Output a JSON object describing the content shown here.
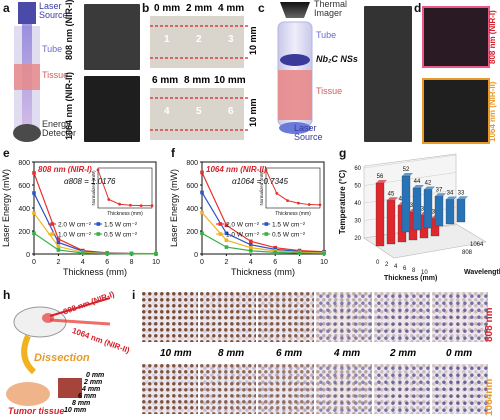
{
  "labels": {
    "a": "a",
    "b": "b",
    "c": "c",
    "d": "d",
    "e": "e",
    "f": "f",
    "g": "g",
    "h": "h",
    "i": "i"
  },
  "panel_a": {
    "laser_source": "Laser Source",
    "tube": "Tube",
    "tissue": "Tissue",
    "energy_detector": "Energy Detector"
  },
  "panel_ab_side": {
    "nir1": "808 nm (NIR-I)",
    "nir2": "1064 nm (NIR-II)"
  },
  "panel_b": {
    "top_thick": [
      "0 mm",
      "2 mm",
      "4 mm"
    ],
    "bot_thick": [
      "6 mm",
      "8 mm",
      "10 mm"
    ],
    "top_nums": [
      "1",
      "2",
      "3"
    ],
    "bot_nums": [
      "4",
      "5",
      "6"
    ],
    "scale": "10 mm"
  },
  "panel_c": {
    "thermal_imager": "Thermal Imager",
    "tube": "Tube",
    "nbc": "Nb₂C NSs",
    "tissue": "Tissue",
    "laser_source": "Laser Source"
  },
  "panel_d": {
    "nir1": "808 nm (NIR-I)",
    "nir2": "1064 nm (NIR-II)"
  },
  "chart_data": [
    {
      "type": "line",
      "panel": "e",
      "title": "808 nm (NIR-I)",
      "xlabel": "Thickness (mm)",
      "ylabel": "Laser Energy (mW)",
      "xlim": [
        0,
        10
      ],
      "ylim": [
        0,
        800
      ],
      "x": [
        0,
        2,
        4,
        6,
        8,
        10
      ],
      "xticks": [
        "0",
        "2",
        "4",
        "6",
        "8",
        "10"
      ],
      "yticks": [
        "0",
        "200",
        "400",
        "600",
        "800"
      ],
      "annotation": "α808 = 1.0176",
      "series": [
        {
          "name": "2.0 W cm⁻²",
          "color": "#e8302b",
          "values": [
            705,
            130,
            30,
            10,
            5,
            3
          ]
        },
        {
          "name": "1.5 W cm⁻²",
          "color": "#2d54c8",
          "values": [
            530,
            100,
            25,
            8,
            4,
            2
          ]
        },
        {
          "name": "1.0 W cm⁻²",
          "color": "#f0b31f",
          "values": [
            355,
            65,
            15,
            6,
            3,
            2
          ]
        },
        {
          "name": "0.5 W cm⁻²",
          "color": "#37b04a",
          "values": [
            180,
            35,
            8,
            3,
            2,
            1
          ]
        }
      ],
      "inset": {
        "ylabel": "Normalized (mW)",
        "xlabel": "Thickness (mm)",
        "values": [
          1.0,
          0.18,
          0.05,
          0.02,
          0.01,
          0.01
        ]
      }
    },
    {
      "type": "line",
      "panel": "f",
      "title": "1064 nm (NIR-II)",
      "xlabel": "Thickness (mm)",
      "ylabel": "Laser Energy (mW)",
      "xlim": [
        0,
        10
      ],
      "ylim": [
        0,
        800
      ],
      "x": [
        0,
        2,
        4,
        6,
        8,
        10
      ],
      "xticks": [
        "0",
        "2",
        "4",
        "6",
        "8",
        "10"
      ],
      "yticks": [
        "0",
        "200",
        "400",
        "600",
        "800"
      ],
      "annotation": "α1064 = 0.7345",
      "series": [
        {
          "name": "2.0 W cm⁻²",
          "color": "#e8302b",
          "values": [
            710,
            250,
            110,
            55,
            30,
            20
          ]
        },
        {
          "name": "1.5 W cm⁻²",
          "color": "#2d54c8",
          "values": [
            535,
            180,
            80,
            40,
            22,
            15
          ]
        },
        {
          "name": "1.0 W cm⁻²",
          "color": "#f0b31f",
          "values": [
            360,
            120,
            55,
            27,
            15,
            10
          ]
        },
        {
          "name": "0.5 W cm⁻²",
          "color": "#37b04a",
          "values": [
            180,
            60,
            28,
            14,
            8,
            5
          ]
        }
      ],
      "inset": {
        "ylabel": "Normalized (mW)",
        "xlabel": "Thickness (mm)",
        "values": [
          1.0,
          0.35,
          0.15,
          0.08,
          0.04,
          0.03
        ]
      }
    },
    {
      "type": "bar",
      "panel": "g",
      "zlabel": "Temperature (°C)",
      "xlabel": "Thickness (mm)",
      "ylabel": "Wavelength (nm)",
      "zticks": [
        "20",
        "30",
        "40",
        "50",
        "60"
      ],
      "thickness_ticks": [
        "0",
        "2",
        "4",
        "6",
        "8",
        "10"
      ],
      "wavelength_ticks": [
        "808",
        "1064"
      ],
      "series": [
        {
          "name": "808",
          "color": "#e0272d",
          "values": [
            56,
            45,
            41,
            36,
            33,
            30
          ]
        },
        {
          "name": "1064",
          "color": "#2873b8",
          "values": [
            52,
            44,
            42,
            37,
            34,
            33
          ]
        }
      ]
    }
  ],
  "panel_h": {
    "nir1": "808 nm (NIR-I)",
    "nir2": "1064 nm (NIR-II)",
    "dissection": "Dissection",
    "tumor": "Tumor tissue",
    "thick": [
      "0 mm",
      "2 mm",
      "4 mm",
      "6 mm",
      "8 mm",
      "10 mm"
    ]
  },
  "panel_i": {
    "side_top": "808 nm",
    "side_bot": "1064nm",
    "mid_labels": [
      "10 mm",
      "8 mm",
      "6 mm",
      "4 mm",
      "2 mm",
      "0 mm"
    ]
  },
  "colors": {
    "red": "#d6202a",
    "blue": "#2d54c8",
    "orange": "#e89a2a",
    "tissue": "#e88a8a"
  }
}
